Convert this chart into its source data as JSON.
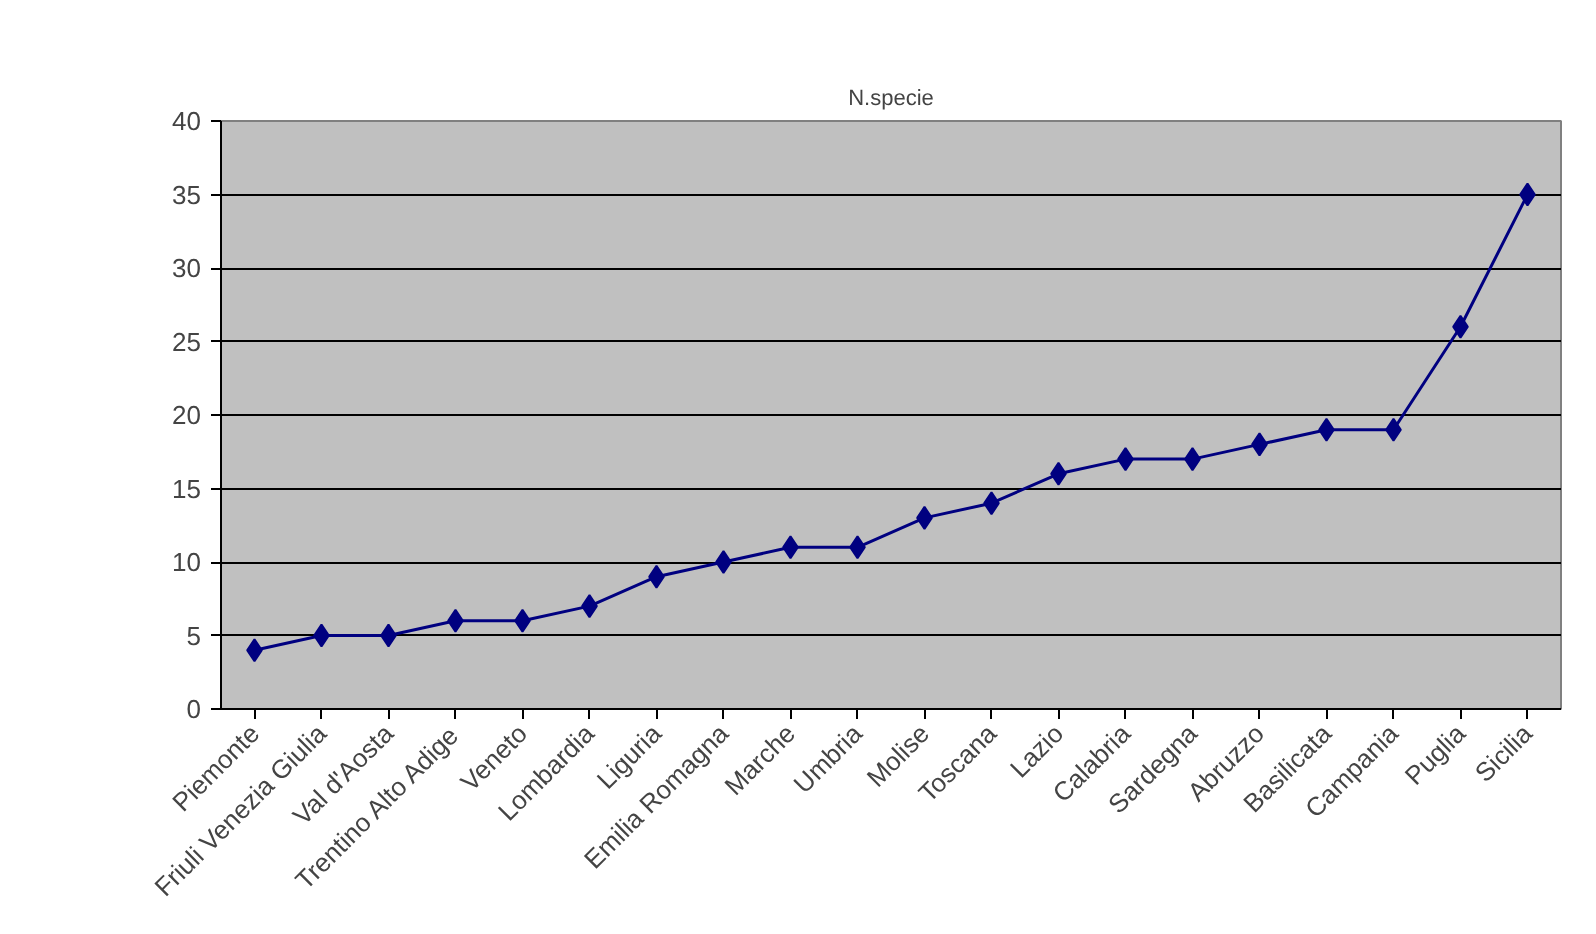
{
  "chart_data": {
    "type": "line",
    "title": "N.specie",
    "categories": [
      "Piemonte",
      "Friuli Venezia Giulia",
      "Val d'Aosta",
      "Trentino Alto Adige",
      "Veneto",
      "Lombardia",
      "Liguria",
      "Emilia Romagna",
      "Marche",
      "Umbria",
      "Molise",
      "Toscana",
      "Lazio",
      "Calabria",
      "Sardegna",
      "Abruzzo",
      "Basilicata",
      "Campania",
      "Puglia",
      "Sicilia"
    ],
    "series": [
      {
        "color": "#000080",
        "values": [
          4,
          5,
          5,
          6,
          6,
          7,
          9,
          10,
          11,
          11,
          13,
          14,
          16,
          17,
          17,
          18,
          19,
          19,
          26,
          35
        ]
      }
    ],
    "ylim": [
      0,
      40
    ],
    "yticks": [
      0,
      5,
      10,
      15,
      20,
      25,
      30,
      35,
      40
    ],
    "grid": "y",
    "marker": "diamond"
  }
}
